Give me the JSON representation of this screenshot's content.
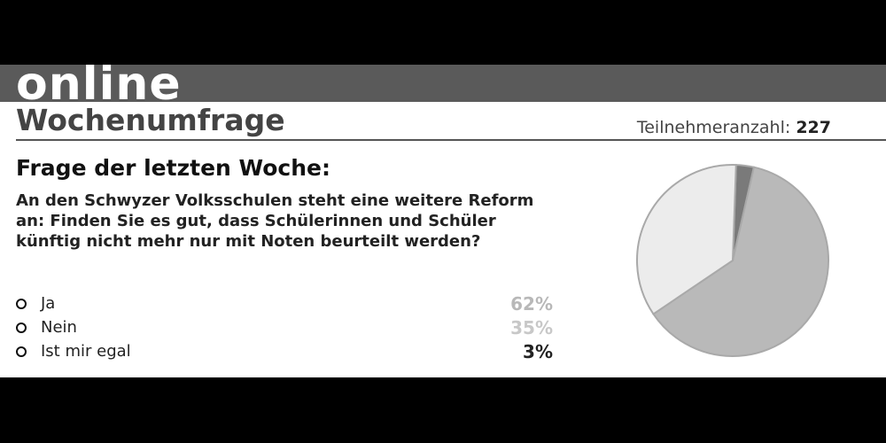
{
  "header": {
    "band_text": "online",
    "title": "Wochenumfrage",
    "participants_label": "Teilnehmeranzahl:",
    "participants_value": "227"
  },
  "question": {
    "title": "Frage der letzten Woche:",
    "text": "An den Schwyzer Volksschulen steht eine weitere Reform an: Finden Sie es gut, dass Schülerinnen und Schüler künftig nicht mehr nur mit Noten beurteilt werden?"
  },
  "options": [
    {
      "label": "Ja",
      "percent": "62%",
      "color": "#b8b8b8"
    },
    {
      "label": "Nein",
      "percent": "35%",
      "color": "#c8c8c8"
    },
    {
      "label": "Ist mir egal",
      "percent": "3%",
      "color": "#222222"
    }
  ],
  "chart_data": {
    "type": "pie",
    "categories": [
      "Ja",
      "Nein",
      "Ist mir egal"
    ],
    "values": [
      62,
      35,
      3
    ],
    "colors": [
      "#b9b9b9",
      "#ececec",
      "#7a7a7a"
    ],
    "slice_border": "#a9a9a9"
  }
}
